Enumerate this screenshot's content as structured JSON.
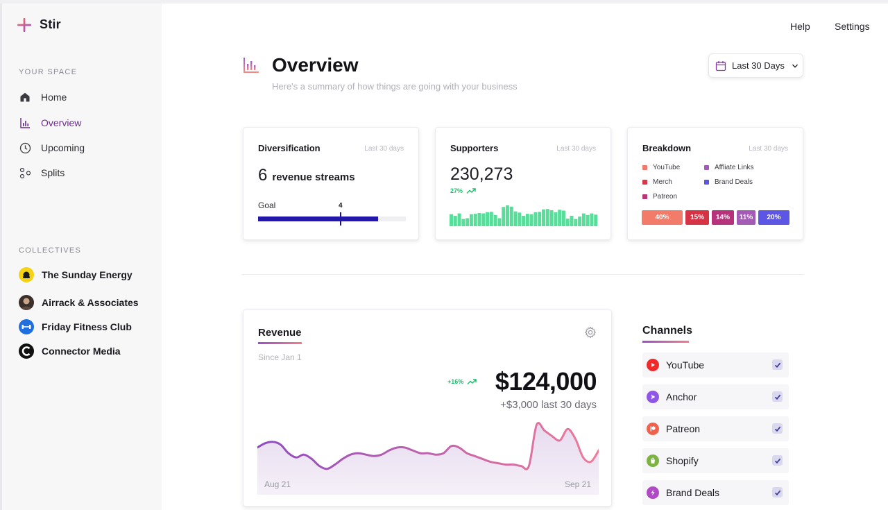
{
  "app": {
    "name": "Stir"
  },
  "sidebar": {
    "your_space_label": "YOUR SPACE",
    "nav": [
      {
        "label": "Home",
        "icon": "home-icon"
      },
      {
        "label": "Overview",
        "icon": "bar-chart-icon",
        "active": true
      },
      {
        "label": "Upcoming",
        "icon": "clock-icon"
      },
      {
        "label": "Splits",
        "icon": "splits-icon"
      }
    ],
    "collectives_label": "COLLECTIVES",
    "collectives": [
      {
        "label": "The Sunday Energy"
      },
      {
        "label": "Airrack & Associates"
      },
      {
        "label": "Friday Fitness Club"
      },
      {
        "label": "Connector Media"
      }
    ]
  },
  "topnav": {
    "help": "Help",
    "settings": "Settings"
  },
  "header": {
    "title": "Overview",
    "subtitle": "Here's a summary of how things are going with your business",
    "date_range": "Last 30 Days"
  },
  "diversification": {
    "title": "Diversification",
    "meta": "Last 30 days",
    "count": "6",
    "count_label": "revenue streams",
    "goal_label": "Goal",
    "goal_value": "4",
    "progress_fraction": 0.81,
    "goal_fraction": 0.56
  },
  "supporters": {
    "title": "Supporters",
    "meta": "Last 30 days",
    "value": "230,273",
    "change": "27%",
    "bars": [
      3,
      2.6,
      3.2,
      1.8,
      2,
      3,
      3.1,
      3.3,
      3.2,
      3.5,
      3.6,
      2.8,
      2,
      4.8,
      5.2,
      4.9,
      3.7,
      3.4,
      2.6,
      3.1,
      3,
      3.5,
      3.6,
      4.2,
      4.3,
      4,
      3.5,
      4.1,
      3.9,
      1.9,
      2.6,
      1.8,
      2.4,
      3.2,
      2.8,
      3.2,
      2.9
    ]
  },
  "breakdown": {
    "title": "Breakdown",
    "meta": "Last 30 days",
    "legend": [
      {
        "label": "YouTube",
        "color": "#f07a6a"
      },
      {
        "label": "Affliate Links",
        "color": "#a15cb8"
      },
      {
        "label": "Merch",
        "color": "#d63849"
      },
      {
        "label": "Brand Deals",
        "color": "#5b56e0"
      },
      {
        "label": "Patreon",
        "color": "#b83676"
      }
    ],
    "segments": [
      {
        "label": "40%",
        "color": "#f37b6a"
      },
      {
        "label": "15%",
        "color": "#d63344"
      },
      {
        "label": "14%",
        "color": "#b6327a"
      },
      {
        "label": "11%",
        "color": "#a35bb6"
      },
      {
        "label": "20%",
        "color": "#5d56e4"
      }
    ]
  },
  "revenue": {
    "title": "Revenue",
    "since": "Since Jan 1",
    "change": "+16%",
    "total": "$124,000",
    "recent": "+$3,000 last 30 days",
    "start_label": "Aug 21",
    "end_label": "Sep 21",
    "series": [
      62,
      65,
      66,
      64,
      58,
      55,
      57,
      54,
      49,
      47,
      50,
      54,
      57,
      58,
      57,
      56,
      57,
      60,
      62,
      62,
      60,
      58,
      58,
      57,
      58,
      63,
      62,
      58,
      56,
      54,
      52,
      51,
      50,
      50,
      49,
      49,
      78,
      74,
      70,
      67,
      75,
      68,
      55,
      52,
      60
    ]
  },
  "channels": {
    "title": "Channels",
    "items": [
      {
        "label": "YouTube",
        "color": "#ee2a2a",
        "checked": true
      },
      {
        "label": "Anchor",
        "color": "#8e55e6",
        "checked": true
      },
      {
        "label": "Patreon",
        "color": "#f0604d",
        "checked": true
      },
      {
        "label": "Shopify",
        "color": "#7cb342",
        "checked": true
      },
      {
        "label": "Brand Deals",
        "color": "#b04ac4",
        "checked": true
      }
    ]
  }
}
